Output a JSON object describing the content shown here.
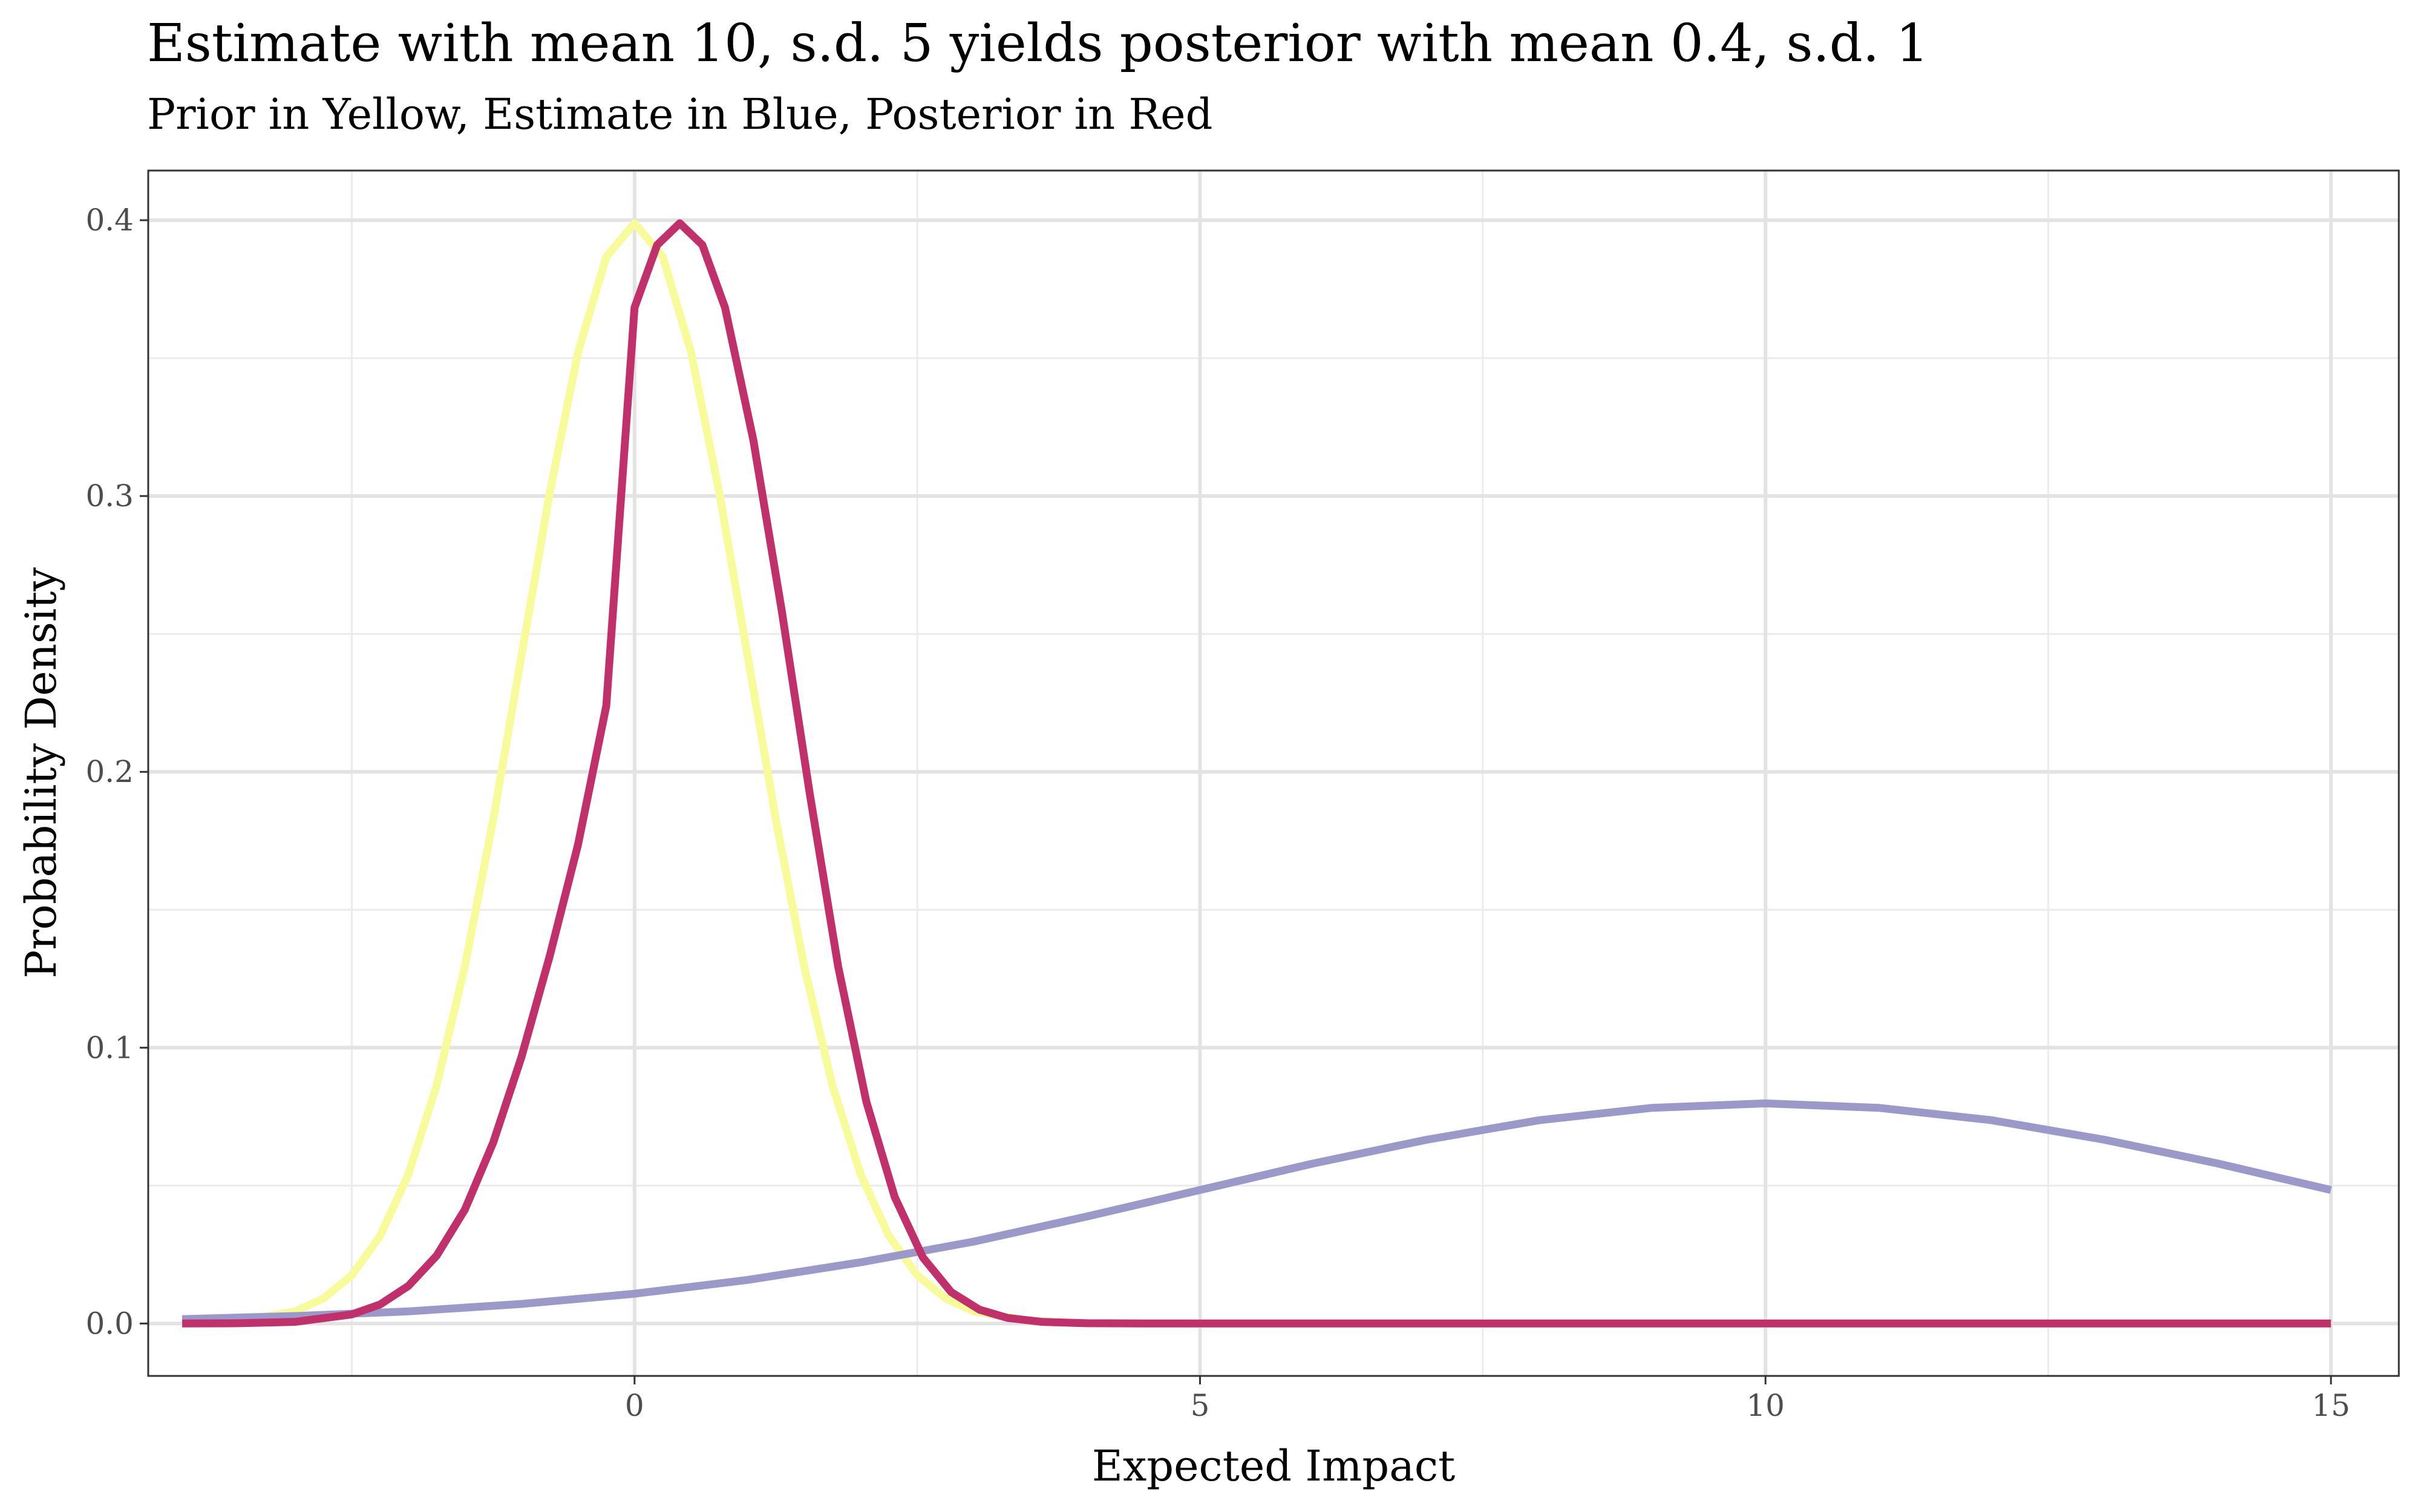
{
  "chart_data": {
    "type": "line",
    "title": "Estimate with mean 10, s.d. 5 yields posterior with mean 0.4, s.d. 1",
    "subtitle": "Prior in Yellow, Estimate in Blue, Posterior in Red",
    "xlabel": "Expected Impact",
    "ylabel": "Probability Density",
    "xlim": [
      -4.3,
      15.6
    ],
    "ylim": [
      -0.019,
      0.418
    ],
    "x_ticks": [
      0,
      5,
      10,
      15
    ],
    "y_ticks": [
      0.0,
      0.1,
      0.2,
      0.3,
      0.4
    ],
    "x_tick_labels": [
      "0",
      "5",
      "10",
      "15"
    ],
    "y_tick_labels": [
      "0.0",
      "0.1",
      "0.2",
      "0.3",
      "0.4"
    ],
    "grid": true,
    "series": [
      {
        "key": "prior",
        "color": "#F7FB9A",
        "x": [
          -4,
          -3.5,
          -3,
          -2.75,
          -2.5,
          -2.25,
          -2,
          -1.75,
          -1.5,
          -1.25,
          -1,
          -0.75,
          -0.5,
          -0.25,
          0,
          0.25,
          0.5,
          0.75,
          1,
          1.25,
          1.5,
          1.75,
          2,
          2.25,
          2.5,
          2.75,
          3,
          3.5,
          4,
          5,
          15
        ],
        "y": [
          0.0001,
          0.0009,
          0.0044,
          0.0091,
          0.0175,
          0.0317,
          0.054,
          0.0863,
          0.1295,
          0.1826,
          0.242,
          0.3011,
          0.3521,
          0.3867,
          0.3989,
          0.3867,
          0.3521,
          0.3011,
          0.242,
          0.1826,
          0.1295,
          0.0863,
          0.054,
          0.0317,
          0.0175,
          0.0091,
          0.0044,
          0.0009,
          0.0001,
          0.0,
          0.0
        ]
      },
      {
        "key": "estimate",
        "color": "#9A99C9",
        "x": [
          -4,
          -3,
          -2,
          -1,
          0,
          1,
          2,
          3,
          4,
          5,
          6,
          7,
          8,
          9,
          10,
          11,
          12,
          13,
          14,
          15
        ],
        "y": [
          0.0016,
          0.0027,
          0.0044,
          0.0071,
          0.0108,
          0.0158,
          0.0222,
          0.0297,
          0.0388,
          0.0484,
          0.058,
          0.0666,
          0.0737,
          0.0782,
          0.0798,
          0.0782,
          0.0737,
          0.0666,
          0.058,
          0.0484
        ]
      },
      {
        "key": "posterior",
        "color": "#C0306A",
        "x": [
          -4,
          -3.5,
          -3,
          -2.5,
          -2.25,
          -2,
          -1.75,
          -1.5,
          -1.25,
          -1,
          -0.75,
          -0.5,
          -0.25,
          0,
          0.2,
          0.4,
          0.6,
          0.8,
          1.05,
          1.3,
          1.55,
          1.8,
          2.05,
          2.3,
          2.55,
          2.8,
          3.05,
          3.3,
          3.6,
          4,
          4.5,
          5,
          15
        ],
        "y": [
          0.0,
          0.0001,
          0.0006,
          0.0033,
          0.0069,
          0.0136,
          0.0246,
          0.0413,
          0.0656,
          0.0966,
          0.1332,
          0.1736,
          0.2239,
          0.3683,
          0.391,
          0.3989,
          0.391,
          0.3683,
          0.3204,
          0.2589,
          0.1919,
          0.1295,
          0.0804,
          0.0459,
          0.0239,
          0.0114,
          0.005,
          0.002,
          0.0006,
          0.0001,
          0.0,
          0.0,
          0.0
        ]
      }
    ]
  }
}
